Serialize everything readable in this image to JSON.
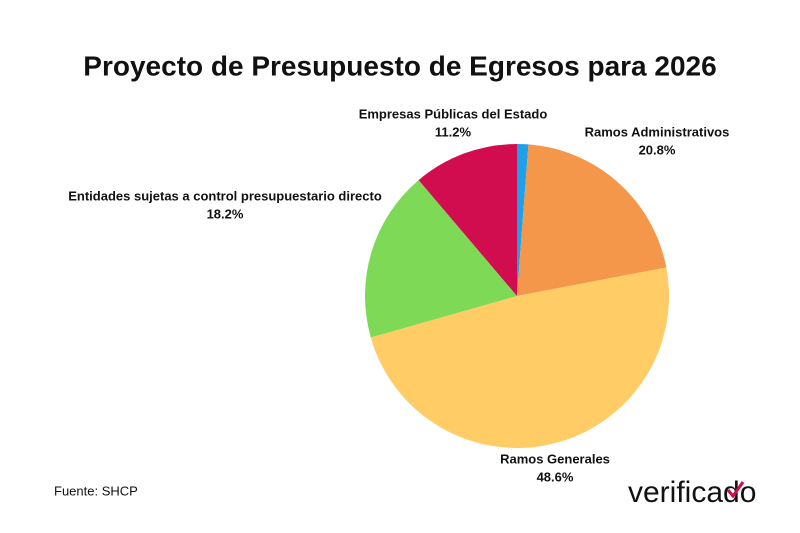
{
  "chart_data": {
    "type": "pie",
    "title": "Proyecto de Presupuesto de Egresos para 2026",
    "categories": [
      null,
      "Ramos Administrativos",
      "Ramos Generales",
      "Entidades sujetas a control presupuestario directo",
      "Empresas Públicas del Estado"
    ],
    "values": [
      1.2,
      20.8,
      48.6,
      18.2,
      11.2
    ],
    "value_labels": [
      null,
      "20.8%",
      "48.6%",
      "18.2%",
      "11.2%"
    ],
    "colors": [
      "#1ea1e6",
      "#f5974a",
      "#ffcc66",
      "#7ed957",
      "#d10c4f"
    ],
    "source": "Fuente: SHCP"
  },
  "logo": "verificado"
}
